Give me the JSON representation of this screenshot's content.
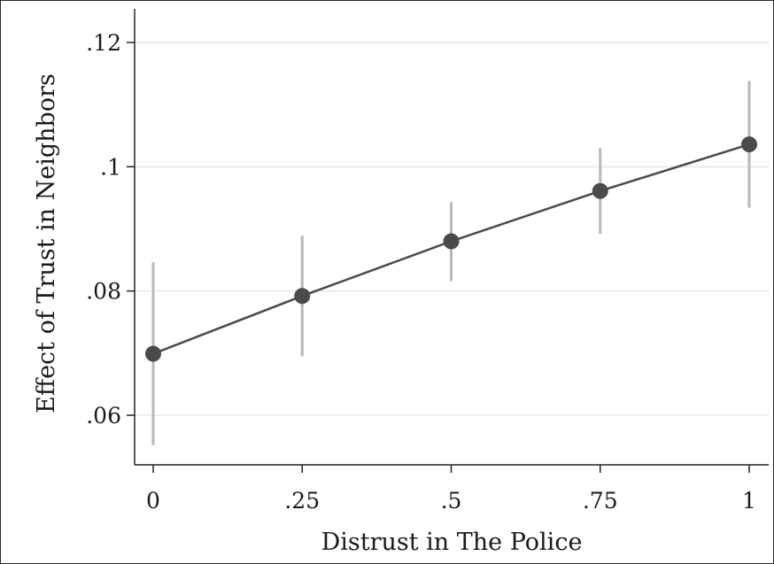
{
  "chart_data": {
    "type": "line",
    "title": "",
    "xlabel": "Distrust in The Police",
    "ylabel": "Effect of Trust in Neighbors",
    "x": [
      0,
      0.25,
      0.5,
      0.75,
      1
    ],
    "x_tick_values": [
      0,
      0.25,
      0.5,
      0.75,
      1
    ],
    "x_tick_labels": [
      "0",
      ".25",
      ".5",
      ".75",
      "1"
    ],
    "y_tick_values": [
      0.06,
      0.08,
      0.1,
      0.12
    ],
    "y_tick_labels": [
      ".06",
      ".08",
      ".1",
      ".12"
    ],
    "xlim": [
      0,
      1
    ],
    "ylim": [
      0.052,
      0.122
    ],
    "grid": true,
    "series": [
      {
        "values": [
          0.0699,
          0.0792,
          0.088,
          0.0961,
          0.1036
        ],
        "ci_lower": [
          0.0552,
          0.0695,
          0.0816,
          0.0892,
          0.0934
        ],
        "ci_upper": [
          0.0846,
          0.0889,
          0.0943,
          0.103,
          0.1138
        ]
      }
    ],
    "colors": {
      "line": "#4a4a4a",
      "marker": "#4a4a4a",
      "ci": "#b8b8b8",
      "grid": "#e7eef0",
      "axis": "#222222"
    }
  }
}
